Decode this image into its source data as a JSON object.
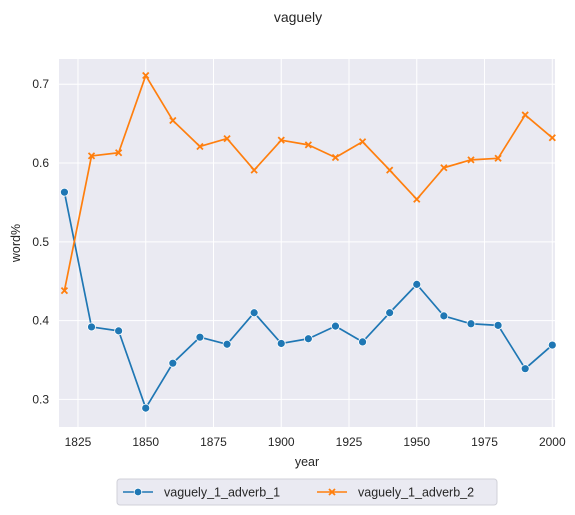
{
  "chart_data": {
    "type": "line",
    "title": "vaguely",
    "xlabel": "year",
    "ylabel": "word%",
    "x": [
      1820,
      1830,
      1840,
      1850,
      1860,
      1870,
      1880,
      1890,
      1900,
      1910,
      1920,
      1930,
      1940,
      1950,
      1960,
      1970,
      1980,
      1990,
      2000
    ],
    "xlim": [
      1818,
      2001
    ],
    "ylim": [
      0.265,
      0.732
    ],
    "xticks": [
      "1825",
      "1850",
      "1875",
      "1900",
      "1925",
      "1950",
      "1975",
      "2000"
    ],
    "yticks": [
      "0.3",
      "0.4",
      "0.5",
      "0.6",
      "0.7"
    ],
    "grid": true,
    "legend_position": "bottom-center",
    "series": [
      {
        "name": "vaguely_1_adverb_1",
        "color": "#1f77b4",
        "marker": "circle",
        "values": [
          0.563,
          0.392,
          0.387,
          0.289,
          0.346,
          0.379,
          0.37,
          0.41,
          0.371,
          0.377,
          0.393,
          0.373,
          0.41,
          0.446,
          0.406,
          0.396,
          0.394,
          0.339,
          0.369
        ]
      },
      {
        "name": "vaguely_1_adverb_2",
        "color": "#ff7f0e",
        "marker": "x",
        "values": [
          0.438,
          0.609,
          0.613,
          0.711,
          0.654,
          0.621,
          0.631,
          0.591,
          0.629,
          0.623,
          0.607,
          0.627,
          0.591,
          0.554,
          0.594,
          0.604,
          0.606,
          0.661,
          0.632
        ]
      }
    ]
  }
}
